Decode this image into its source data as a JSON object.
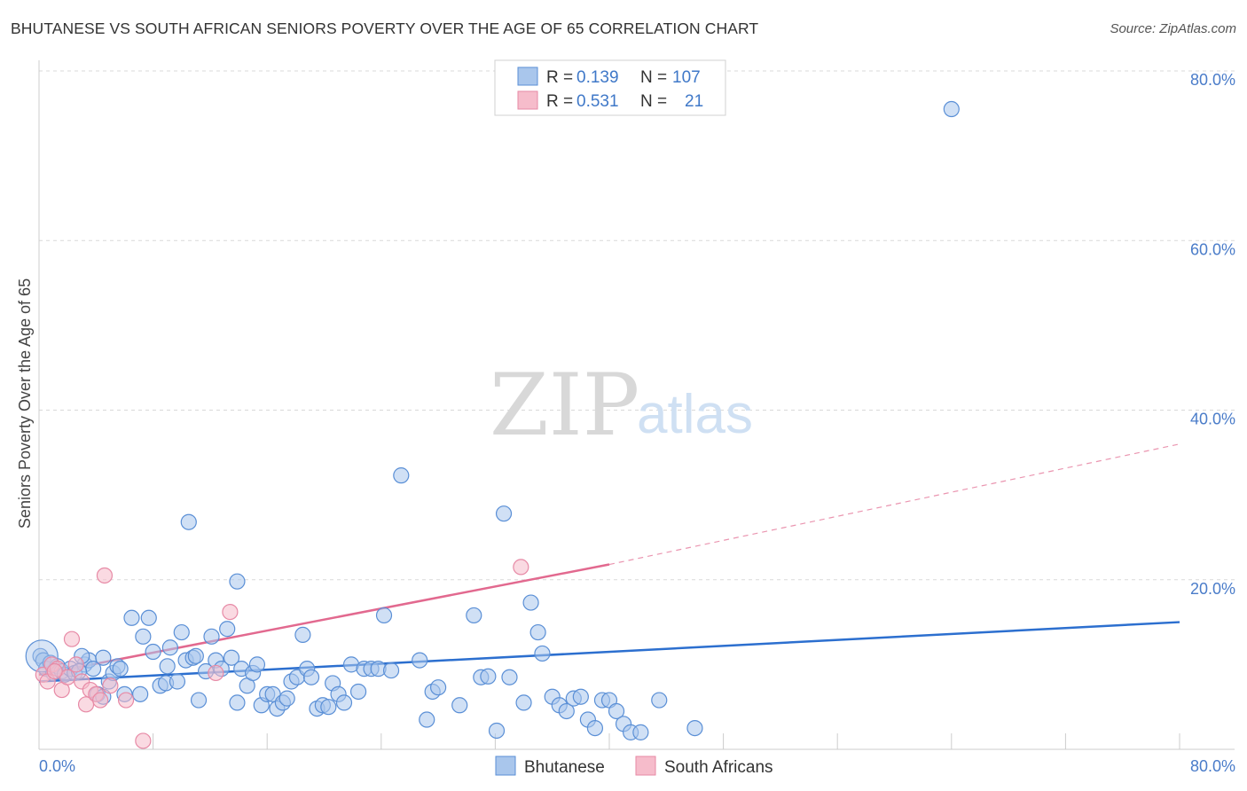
{
  "title": "BHUTANESE VS SOUTH AFRICAN SENIORS POVERTY OVER THE AGE OF 65 CORRELATION CHART",
  "source": "Source: ZipAtlas.com",
  "watermark": {
    "zip": "ZIP",
    "atlas": "atlas"
  },
  "colors": {
    "blue_fill": "#a9c6ec",
    "blue_stroke": "#5a8fd6",
    "blue_line": "#2c6fcf",
    "pink_fill": "#f6bccb",
    "pink_stroke": "#e78aa6",
    "pink_line": "#e2698f",
    "grid": "#d9d9d9",
    "tick_text": "#4a7cc9"
  },
  "legend": {
    "rows": [
      {
        "r_label": "R = ",
        "r_value": "0.139",
        "n_label": "N = ",
        "n_value": "107",
        "color": "blue"
      },
      {
        "r_label": "R = ",
        "r_value": "0.531",
        "n_label": "N = ",
        "n_value": "21",
        "color": "pink"
      }
    ]
  },
  "bottom_legend": {
    "blue_label": "Bhutanese",
    "pink_label": "South Africans"
  },
  "chart_data": {
    "type": "scatter",
    "title": "BHUTANESE VS SOUTH AFRICAN SENIORS POVERTY OVER THE AGE OF 65 CORRELATION CHART",
    "xlabel": "",
    "ylabel": "Seniors Poverty Over the Age of 65",
    "xlim": [
      0,
      80
    ],
    "ylim": [
      0,
      80
    ],
    "x_tick_labels": [
      {
        "value": 0,
        "label": "0.0%"
      },
      {
        "value": 80,
        "label": "80.0%"
      }
    ],
    "y_tick_labels": [
      {
        "value": 20,
        "label": "20.0%"
      },
      {
        "value": 40,
        "label": "40.0%"
      },
      {
        "value": 60,
        "label": "60.0%"
      },
      {
        "value": 80,
        "label": "80.0%"
      }
    ],
    "grid": true,
    "series": [
      {
        "name": "Bhutanese",
        "color": "blue",
        "trendline": {
          "x": [
            0,
            80
          ],
          "y": [
            8.0,
            15.0
          ],
          "style": "solid"
        },
        "points": [
          [
            0.1,
            11.0
          ],
          [
            0.3,
            10.5
          ],
          [
            0.5,
            9.5
          ],
          [
            0.8,
            10.2
          ],
          [
            1.0,
            9.0
          ],
          [
            1.3,
            9.8
          ],
          [
            1.6,
            9.2
          ],
          [
            1.8,
            8.8
          ],
          [
            2.2,
            9.5
          ],
          [
            2.5,
            9.0
          ],
          [
            3.2,
            10.0
          ],
          [
            3.5,
            10.5
          ],
          [
            3.8,
            9.5
          ],
          [
            4.1,
            6.5
          ],
          [
            4.5,
            6.2
          ],
          [
            4.9,
            8.0
          ],
          [
            5.2,
            9.0
          ],
          [
            5.5,
            9.8
          ],
          [
            6.5,
            15.5
          ],
          [
            7.3,
            13.3
          ],
          [
            7.7,
            15.5
          ],
          [
            8.0,
            11.5
          ],
          [
            8.5,
            7.5
          ],
          [
            8.9,
            7.8
          ],
          [
            9.2,
            12.0
          ],
          [
            9.7,
            8.0
          ],
          [
            10.0,
            13.8
          ],
          [
            10.3,
            10.5
          ],
          [
            10.8,
            10.8
          ],
          [
            11.2,
            5.8
          ],
          [
            11.7,
            9.2
          ],
          [
            12.1,
            13.3
          ],
          [
            12.4,
            10.5
          ],
          [
            12.8,
            9.5
          ],
          [
            13.2,
            14.2
          ],
          [
            13.5,
            10.8
          ],
          [
            13.9,
            5.5
          ],
          [
            14.2,
            9.5
          ],
          [
            14.6,
            7.5
          ],
          [
            15.0,
            9.0
          ],
          [
            15.3,
            10.0
          ],
          [
            15.6,
            5.2
          ],
          [
            16.0,
            6.5
          ],
          [
            16.4,
            6.5
          ],
          [
            16.7,
            4.8
          ],
          [
            17.1,
            5.5
          ],
          [
            17.4,
            6.0
          ],
          [
            17.7,
            8.0
          ],
          [
            18.1,
            8.5
          ],
          [
            18.5,
            13.5
          ],
          [
            18.8,
            9.5
          ],
          [
            19.1,
            8.5
          ],
          [
            19.5,
            4.8
          ],
          [
            19.9,
            5.2
          ],
          [
            20.3,
            5.0
          ],
          [
            20.6,
            7.8
          ],
          [
            21.0,
            6.5
          ],
          [
            21.4,
            5.5
          ],
          [
            21.9,
            10.0
          ],
          [
            22.4,
            6.8
          ],
          [
            22.8,
            9.5
          ],
          [
            23.3,
            9.5
          ],
          [
            23.8,
            9.5
          ],
          [
            24.2,
            15.8
          ],
          [
            24.7,
            9.3
          ],
          [
            25.4,
            32.3
          ],
          [
            26.7,
            10.5
          ],
          [
            27.2,
            3.5
          ],
          [
            27.6,
            6.8
          ],
          [
            28.0,
            7.3
          ],
          [
            29.5,
            5.2
          ],
          [
            30.5,
            15.8
          ],
          [
            31.0,
            8.5
          ],
          [
            31.5,
            8.6
          ],
          [
            32.1,
            2.2
          ],
          [
            32.6,
            27.8
          ],
          [
            33.0,
            8.5
          ],
          [
            34.0,
            5.5
          ],
          [
            34.5,
            17.3
          ],
          [
            35.0,
            13.8
          ],
          [
            35.3,
            11.3
          ],
          [
            36.0,
            6.2
          ],
          [
            36.5,
            5.2
          ],
          [
            37.0,
            4.5
          ],
          [
            37.5,
            6.0
          ],
          [
            38.0,
            6.2
          ],
          [
            38.5,
            3.5
          ],
          [
            39.0,
            2.5
          ],
          [
            39.5,
            5.8
          ],
          [
            40.0,
            5.8
          ],
          [
            40.5,
            4.5
          ],
          [
            41.0,
            3.0
          ],
          [
            41.5,
            2.0
          ],
          [
            42.2,
            2.0
          ],
          [
            43.5,
            5.8
          ],
          [
            46.0,
            2.5
          ],
          [
            64.0,
            75.5
          ],
          [
            10.5,
            26.8
          ],
          [
            13.9,
            19.8
          ],
          [
            2.8,
            9.2
          ],
          [
            6.0,
            6.5
          ],
          [
            7.1,
            6.5
          ],
          [
            3.0,
            11.0
          ],
          [
            4.5,
            10.8
          ],
          [
            5.7,
            9.5
          ],
          [
            9.0,
            9.8
          ],
          [
            11.0,
            11.0
          ]
        ]
      },
      {
        "name": "South Africans",
        "color": "pink",
        "trendline": {
          "x": [
            0,
            40
          ],
          "y": [
            8.8,
            21.8
          ],
          "style": "solid",
          "extension": {
            "x": [
              40,
              80
            ],
            "y": [
              21.8,
              36.0
            ],
            "style": "dashed"
          }
        },
        "points": [
          [
            0.3,
            8.8
          ],
          [
            0.6,
            8.0
          ],
          [
            0.9,
            10.0
          ],
          [
            1.3,
            9.5
          ],
          [
            1.6,
            7.0
          ],
          [
            2.0,
            8.5
          ],
          [
            2.3,
            13.0
          ],
          [
            2.6,
            10.0
          ],
          [
            3.0,
            8.0
          ],
          [
            3.3,
            5.3
          ],
          [
            3.6,
            7.0
          ],
          [
            4.0,
            6.5
          ],
          [
            4.3,
            5.8
          ],
          [
            4.6,
            20.5
          ],
          [
            5.0,
            7.5
          ],
          [
            6.1,
            5.8
          ],
          [
            7.3,
            1.0
          ],
          [
            13.4,
            16.2
          ],
          [
            12.4,
            9.0
          ],
          [
            33.8,
            21.5
          ],
          [
            1.1,
            9.2
          ]
        ]
      }
    ]
  }
}
